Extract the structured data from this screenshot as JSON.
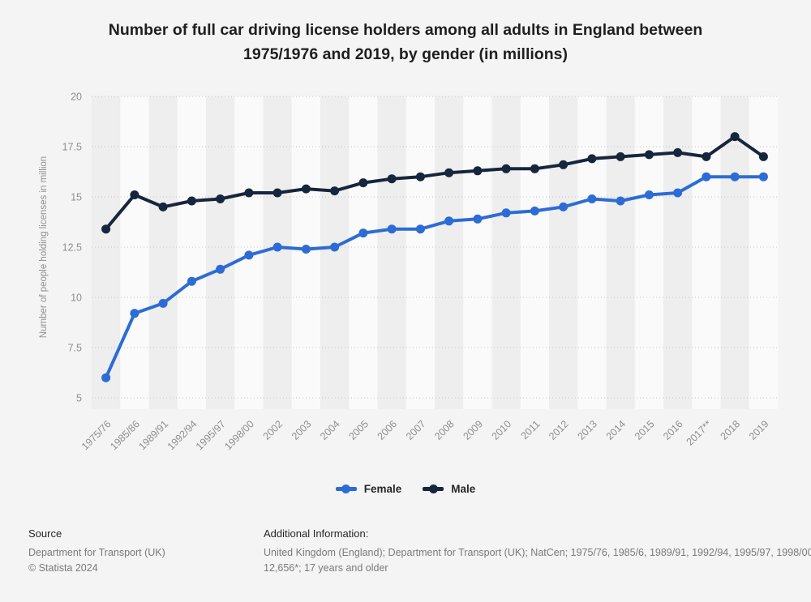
{
  "title": "Number of full car driving license holders among all adults in England between 1975/1976 and 2019, by gender (in millions)",
  "chart_data": {
    "type": "line",
    "categories": [
      "1975/76",
      "1985/86",
      "1989/91",
      "1992/94",
      "1995/97",
      "1998/00",
      "2002",
      "2003",
      "2004",
      "2005",
      "2006",
      "2007",
      "2008",
      "2009",
      "2010",
      "2011",
      "2012",
      "2013",
      "2014",
      "2015",
      "2016",
      "2017**",
      "2018",
      "2019"
    ],
    "series": [
      {
        "name": "Female",
        "color": "#2d6cd4",
        "values": [
          6.0,
          9.2,
          9.7,
          10.8,
          11.4,
          12.1,
          12.5,
          12.4,
          12.5,
          13.2,
          13.4,
          13.4,
          13.8,
          13.9,
          14.2,
          14.3,
          14.5,
          14.9,
          14.8,
          15.1,
          15.2,
          16.0,
          16.0,
          16.0
        ]
      },
      {
        "name": "Male",
        "color": "#16263c",
        "values": [
          13.4,
          15.1,
          14.5,
          14.8,
          14.9,
          15.2,
          15.2,
          15.4,
          15.3,
          15.7,
          15.9,
          16.0,
          16.2,
          16.3,
          16.4,
          16.4,
          16.6,
          16.9,
          17.0,
          17.1,
          17.2,
          17.0,
          18.0,
          17.0
        ]
      }
    ],
    "title": "Number of full car driving license holders among all adults in England between 1975/1976 and 2019, by gender (in millions)",
    "xlabel": "",
    "ylabel": "Number of people holding licenses in million",
    "ylim": [
      5,
      20
    ],
    "yticks": [
      "5",
      "7.5",
      "10",
      "12.5",
      "15",
      "17.5",
      "20"
    ],
    "grid": "horizontal dotted",
    "legend_position": "bottom",
    "background_color": "#f4f4f4",
    "band_colors": [
      "#eeeeee",
      "#fafafa"
    ],
    "gridline_color": "#c6c6c6",
    "tick_label_color": "#8f8f8f"
  },
  "legend": {
    "items": [
      {
        "label": "Female",
        "color": "#2d6cd4"
      },
      {
        "label": "Male",
        "color": "#16263c"
      }
    ]
  },
  "footer": {
    "source_label": "Source",
    "source_name": "Department for Transport (UK)",
    "copyright": "© Statista 2024",
    "additional_label": "Additional Information:",
    "additional_line1": "United Kingdom (England); Department for Transport (UK); NatCen; 1975/76, 1985/6, 1989/91, 1992/94, 1995/97, 1998/00",
    "additional_line2": "12,656*; 17 years and older"
  }
}
